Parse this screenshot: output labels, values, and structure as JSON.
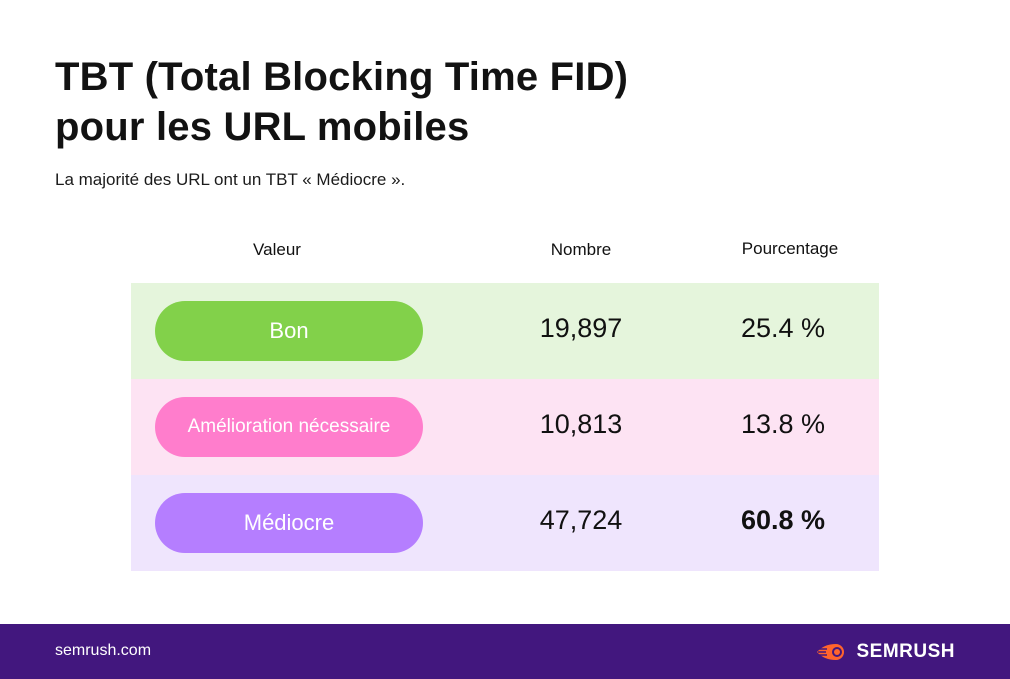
{
  "header": {
    "title_line1": "TBT (Total Blocking Time FID)",
    "title_line2": "pour les URL mobiles",
    "subtitle": "La majorité des URL ont un TBT « Médiocre »."
  },
  "table": {
    "columns": [
      "Valeur",
      "Nombre",
      "Pourcentage"
    ],
    "rows": [
      {
        "label": "Bon",
        "count": "19,897",
        "percent": "25.4 %",
        "pill_color": "#82d14a",
        "row_bg": "#e5f5dc"
      },
      {
        "label": "Amélioration nécessaire",
        "count": "10,813",
        "percent": "13.8 %",
        "pill_color": "#ff7dcc",
        "row_bg": "#fde3f3"
      },
      {
        "label": "Médiocre",
        "count": "47,724",
        "percent": "60.8 %",
        "pill_color": "#b57eff",
        "row_bg": "#efe5fd"
      }
    ]
  },
  "footer": {
    "url": "semrush.com",
    "brand": "SEMRUSH",
    "background": "#42177e",
    "logo_icon": "semrush-fire-icon",
    "logo_color": "#ff642d"
  }
}
